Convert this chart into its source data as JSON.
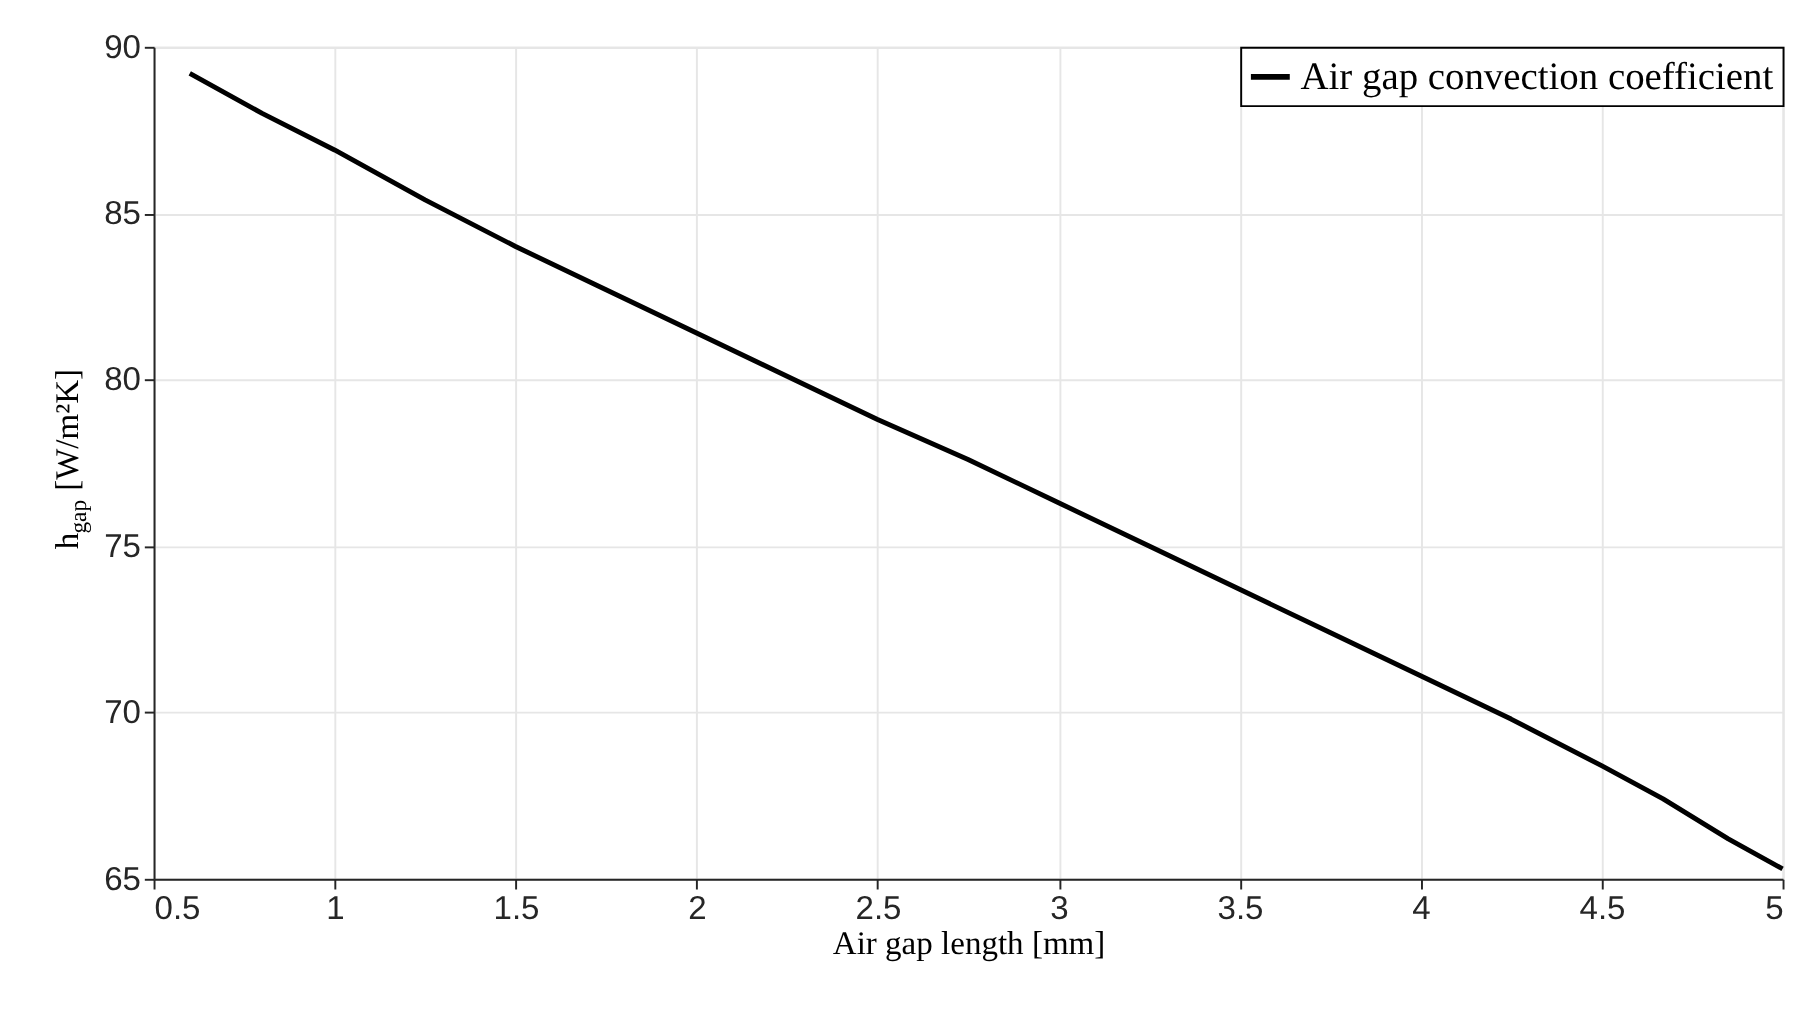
{
  "chart_data": {
    "type": "line",
    "xlabel": "Air gap length [mm]",
    "ylabel": "h$_{gap}$ [W/m²K]",
    "x": [
      0.6,
      0.8,
      1.0,
      1.25,
      1.5,
      1.75,
      2.0,
      2.25,
      2.5,
      2.75,
      3.0,
      3.25,
      3.5,
      3.75,
      4.0,
      4.25,
      4.5,
      4.67,
      4.85,
      5.0
    ],
    "series": [
      {
        "name": "Air gap convection coefficient",
        "color": "#000000",
        "values": [
          89.2,
          88.0,
          86.9,
          85.4,
          84.0,
          82.7,
          81.4,
          80.1,
          78.8,
          77.6,
          76.3,
          75.0,
          73.7,
          72.4,
          71.1,
          69.8,
          68.4,
          67.4,
          66.2,
          65.3
        ]
      }
    ],
    "xlim": [
      0.5,
      5
    ],
    "xticks": [
      0.5,
      1,
      1.5,
      2,
      2.5,
      3,
      3.5,
      4,
      4.5,
      5
    ],
    "ylim": [
      65,
      90
    ],
    "yticks": [
      65,
      70,
      75,
      80,
      85,
      90
    ],
    "grid": true,
    "legend": "top right",
    "marker": "none",
    "line_style": "solid"
  }
}
